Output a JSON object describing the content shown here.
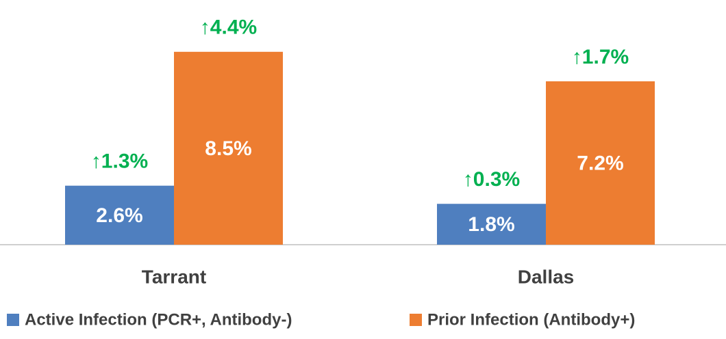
{
  "chart_data": {
    "type": "bar",
    "categories": [
      "Tarrant",
      "Dallas"
    ],
    "series": [
      {
        "name": "Active Infection (PCR+, Antibody-)",
        "color": "#4f7fbf",
        "values": [
          2.6,
          1.8
        ],
        "value_labels": [
          "2.6%",
          "1.8%"
        ],
        "change_labels": [
          "↑1.3%",
          "↑0.3%"
        ]
      },
      {
        "name": "Prior Infection (Antibody+)",
        "color": "#ed7d31",
        "values": [
          8.5,
          7.2
        ],
        "value_labels": [
          "8.5%",
          "7.2%"
        ],
        "change_labels": [
          "↑4.4%",
          "↑1.7%"
        ]
      }
    ]
  }
}
